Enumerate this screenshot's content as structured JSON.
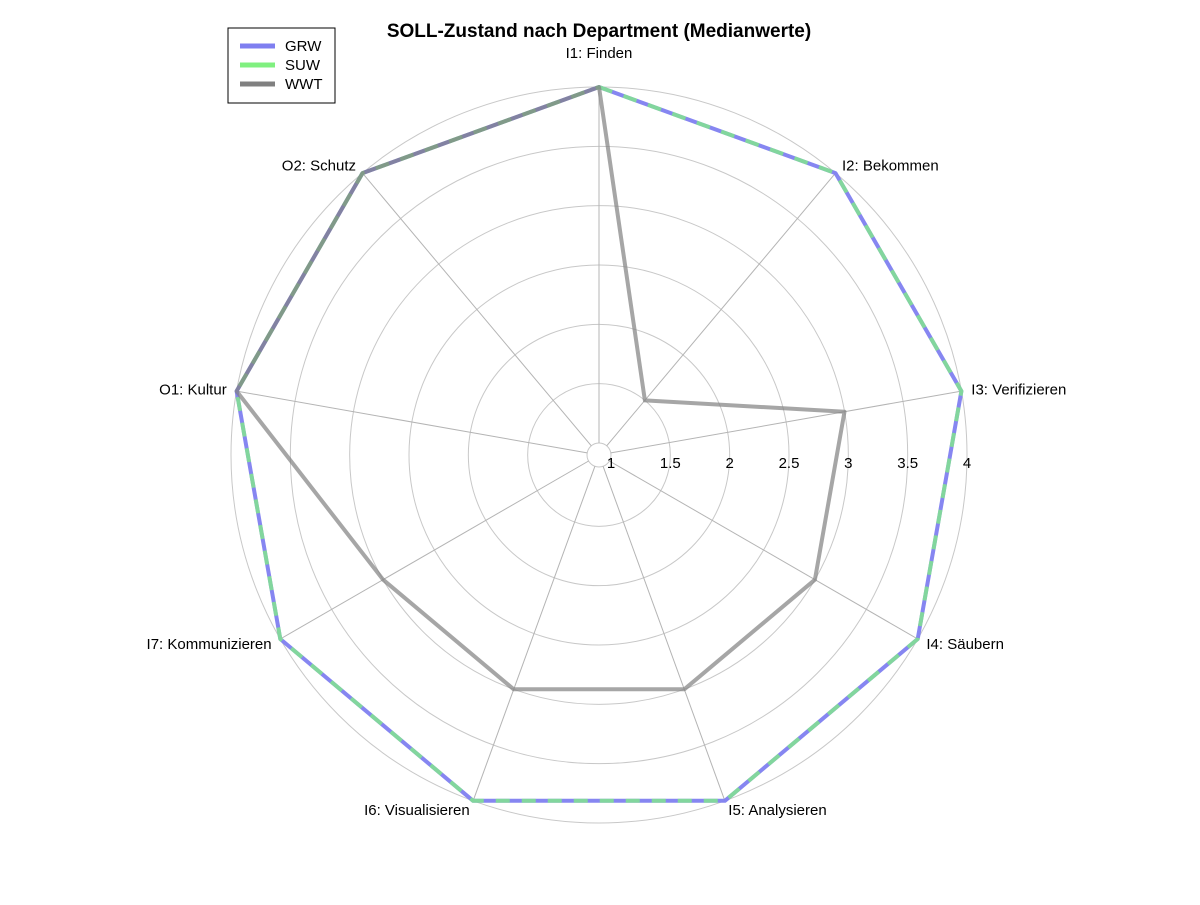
{
  "chart_data": {
    "type": "radar",
    "title": "SOLL-Zustand nach Department (Medianwerte)",
    "axes": [
      "I1: Finden",
      "I2: Bekommen",
      "I3: Verifizieren",
      "I4: Säubern",
      "I5: Analysieren",
      "I6: Visualisieren",
      "I7: Kommunizieren",
      "O1: Kultur",
      "O2: Schutz"
    ],
    "rlim": [
      1,
      4
    ],
    "ticks": [
      "1",
      "1.5",
      "2",
      "2.5",
      "3",
      "3.5",
      "4"
    ],
    "grid": true,
    "legend": {
      "position": "top-left"
    },
    "series": [
      {
        "name": "GRW",
        "color": "#7f7ff0",
        "values": [
          4,
          4,
          4,
          4,
          4,
          4,
          4,
          4,
          4
        ]
      },
      {
        "name": "SUW",
        "color": "#80f080",
        "values": [
          4,
          4,
          4,
          4,
          4,
          4,
          4,
          4,
          4
        ]
      },
      {
        "name": "WWT",
        "color": "#808080",
        "values": [
          4,
          1.5,
          3,
          3,
          3,
          3,
          3,
          4,
          4
        ]
      }
    ]
  }
}
